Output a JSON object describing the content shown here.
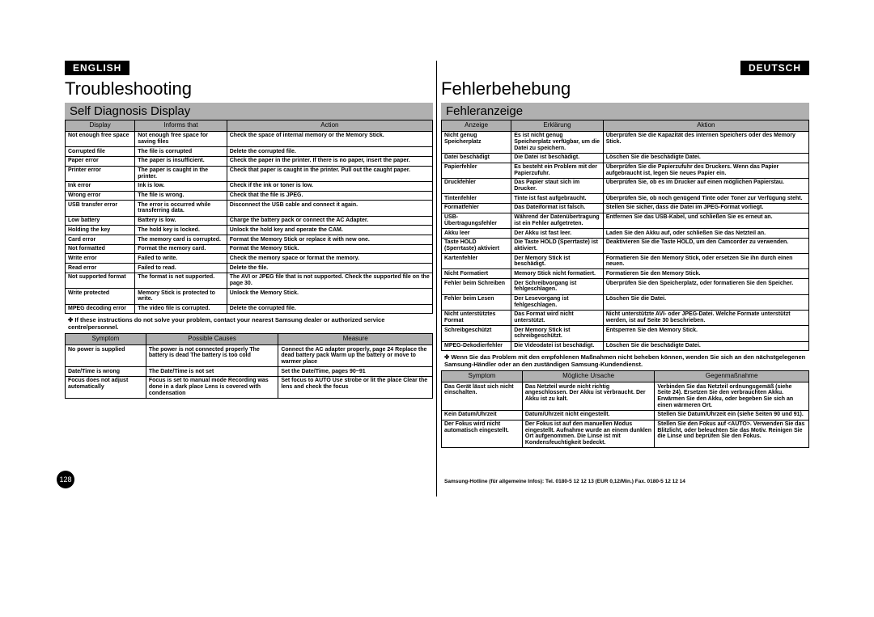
{
  "left": {
    "lang": "ENGLISH",
    "title": "Troubleshooting",
    "subhead": "Self Diagnosis Display",
    "table1": {
      "cols": [
        "Display",
        "Informs that",
        "Action"
      ],
      "widths": [
        "19%",
        "25%",
        "56%"
      ],
      "rows": [
        [
          "Not enough free space",
          "Not enough free space for saving files",
          "Check the space of internal memory or the Memory Stick."
        ],
        [
          "Corrupted file",
          "The file is corrupted",
          "Delete the corrupted file."
        ],
        [
          "Paper error",
          "The paper is insufficient.",
          "Check the paper in the printer. If there is no paper, insert the paper."
        ],
        [
          "Printer error",
          "The paper is caught in the printer.",
          "Check that paper is caught in the printer. Pull out the caught paper."
        ],
        [
          "Ink error",
          "Ink is low.",
          "Check if the ink or toner is low."
        ],
        [
          "Wrong error",
          "The file is wrong.",
          "Check that the file is JPEG."
        ],
        [
          "USB transfer error",
          "The error is occurred while transferring data.",
          "Disconnect the USB cable and connect it again."
        ],
        [
          "Low battery",
          "Battery is low.",
          "Charge the battery pack or connect the AC Adapter."
        ],
        [
          "Holding the key",
          "The hold key is locked.",
          "Unlock the hold key and operate the CAM."
        ],
        [
          "Card error",
          "The memory card is corrupted.",
          "Format the Memory Stick or replace it with new one."
        ],
        [
          "Not formatted",
          "Format the memory card.",
          "Format the Memory Stick."
        ],
        [
          "Write error",
          "Failed to write.",
          "Check the memory space or format the memory."
        ],
        [
          "Read error",
          "Failed to read.",
          "Delete the file."
        ],
        [
          "Not supported format",
          "The format is not supported.",
          "The AVI or JPEG file that is not supported. Check the supported file on the page 30."
        ],
        [
          "Write protected",
          "Memory Stick is protected to write.",
          "Unlock the Memory Stick."
        ],
        [
          "MPEG decoding error",
          "The video file is corrupted.",
          "Delete the corrupted file."
        ]
      ]
    },
    "note": "✤ If these instructions do not solve your problem, contact your nearest Samsung dealer or authorized service centre/personnel.",
    "table2": {
      "cols": [
        "Symptom",
        "Possible Causes",
        "Measure"
      ],
      "widths": [
        "22%",
        "36%",
        "42%"
      ],
      "rows": [
        [
          "No power is supplied",
          "The power is not connected properly\nThe battery is dead\nThe battery is too cold",
          "Connect the AC adapter properly, page 24\nReplace the dead battery pack\nWarm up the battery or move to warmer place"
        ],
        [
          "Date/Time is wrong",
          "The Date/Time is not set",
          "Set the Date/Time, pages 90~91"
        ],
        [
          "Focus does not adjust automatically",
          "Focus is set to manual mode\nRecording was done in a dark place\nLens is covered with condensation",
          "Set focus to AUTO\nUse strobe or lit the place\nClear the lens and check the focus"
        ]
      ]
    },
    "pagenum": "128"
  },
  "right": {
    "lang": "DEUTSCH",
    "title": "Fehlerbehebung",
    "subhead": "Fehleranzeige",
    "table1": {
      "cols": [
        "Anzeige",
        "Erklärung",
        "Aktion"
      ],
      "widths": [
        "19%",
        "25%",
        "56%"
      ],
      "rows": [
        [
          "Nicht genug Speicherplatz",
          "Es ist nicht genug Speicherplatz verfügbar, um die Datei zu speichern.",
          "Überprüfen Sie die Kapazität des internen Speichers oder des Memory Stick."
        ],
        [
          "Datei beschädigt",
          "Die Datei ist beschädigt.",
          "Löschen Sie die beschädigte Datei."
        ],
        [
          "Papierfehler",
          "Es besteht ein Problem mit der Papierzufuhr.",
          "Überprüfen Sie die Papierzufuhr des Druckers. Wenn das Papier aufgebraucht ist, legen Sie neues Papier ein."
        ],
        [
          "Druckfehler",
          "Das Papier staut sich im Drucker.",
          "Überprüfen Sie, ob es im Drucker auf einen möglichen Papierstau."
        ],
        [
          "Tintenfehler",
          "Tinte ist fast aufgebraucht.",
          "Überprüfen Sie, ob noch genügend Tinte oder Toner zur Verfügung steht."
        ],
        [
          "Formatfehler",
          "Das Dateiformat ist falsch.",
          "Stellen Sie sicher, dass die Datei im JPEG-Format vorliegt."
        ],
        [
          "USB-Übertragungsfehler",
          "Während der Datenübertragung ist ein Fehler aufgetreten.",
          "Entfernen Sie das USB-Kabel, und schließen Sie es erneut an."
        ],
        [
          "Akku leer",
          "Der Akku ist fast leer.",
          "Laden Sie den Akku auf, oder schließen Sie das Netzteil an."
        ],
        [
          "Taste HOLD (Sperrtaste) aktiviert",
          "Die Taste HOLD (Sperrtaste) ist aktiviert.",
          "Deaktivieren Sie die Taste HOLD, um den Camcorder zu verwenden."
        ],
        [
          "Kartenfehler",
          "Der Memory Stick ist beschädigt.",
          "Formatieren Sie den Memory Stick, oder ersetzen Sie ihn durch einen neuen."
        ],
        [
          "Nicht Formatiert",
          "Memory Stick nicht formatiert.",
          "Formatieren Sie den Memory Stick."
        ],
        [
          "Fehler beim Schreiben",
          "Der Schreibvorgang ist fehlgeschlagen.",
          "Überprüfen Sie den Speicherplatz, oder formatieren Sie den Speicher."
        ],
        [
          "Fehler beim Lesen",
          "Der Lesevorgang ist fehlgeschlagen.",
          "Löschen Sie die Datei."
        ],
        [
          "Nicht unterstütztes Format",
          "Das Format wird nicht unterstützt.",
          "Nicht unterstützte AVI- oder JPEG-Datei. Welche Formate unterstützt werden, ist auf Seite 30 beschrieben."
        ],
        [
          "Schreibgeschützt",
          "Der Memory Stick ist schreibgeschützt.",
          "Entsperren Sie den Memory Stick."
        ],
        [
          "MPEG-Dekodierfehler",
          "Die Videodatei ist beschädigt.",
          "Löschen Sie die beschädigte Datei."
        ]
      ]
    },
    "note": "✤ Wenn Sie das Problem mit den empfohlenen Maßnahmen nicht beheben können, wenden Sie sich an den nächstgelegenen Samsung-Händler oder an den zuständigen Samsung-Kundendienst.",
    "table2": {
      "cols": [
        "Symptom",
        "Mögliche Ursache",
        "Gegenmaßnahme"
      ],
      "widths": [
        "22%",
        "36%",
        "42%"
      ],
      "rows": [
        [
          "Das Gerät lässt sich nicht einschalten.",
          "Das Netzteil wurde nicht richtig angeschlossen. Der Akku ist verbraucht.\nDer Akku ist zu kalt.",
          "Verbinden Sie das Netzteil ordnungsgemäß (siehe Seite 24).\nErsetzen Sie den verbrauchten Akku.\nErwärmen Sie den Akku, oder begeben Sie sich an einen wärmeren Ort."
        ],
        [
          "Kein Datum/Uhrzeit",
          "Datum/Uhrzeit nicht eingestellt.",
          "Stellen Sie Datum/Uhrzeit ein (siehe Seiten 90 und 91)."
        ],
        [
          "Der Fokus wird nicht automatisch eingestellt.",
          "Der Fokus ist auf den manuellen Modus eingestellt.\nAufnahme wurde an einem dunklen Ort aufgenommen.\nDie Linse ist mit Kondensfeuchtigkeit bedeckt.",
          "Stellen Sie den Fokus auf <AUTO>. Verwenden Sie das Blitzlicht, oder beleuchten Sie das Motiv. Reinigen Sie die Linse und beprüfen Sie den Fokus."
        ]
      ]
    },
    "hotline": "Samsung-Hotline (für allgemeine Infos): Tel. 0180-5 12 12 13 (EUR 0,12/Min.)  Fax. 0180-5 12 12 14"
  },
  "colors": {
    "header_bg": "#b0b0b0",
    "text": "#000000",
    "bg": "#ffffff"
  }
}
